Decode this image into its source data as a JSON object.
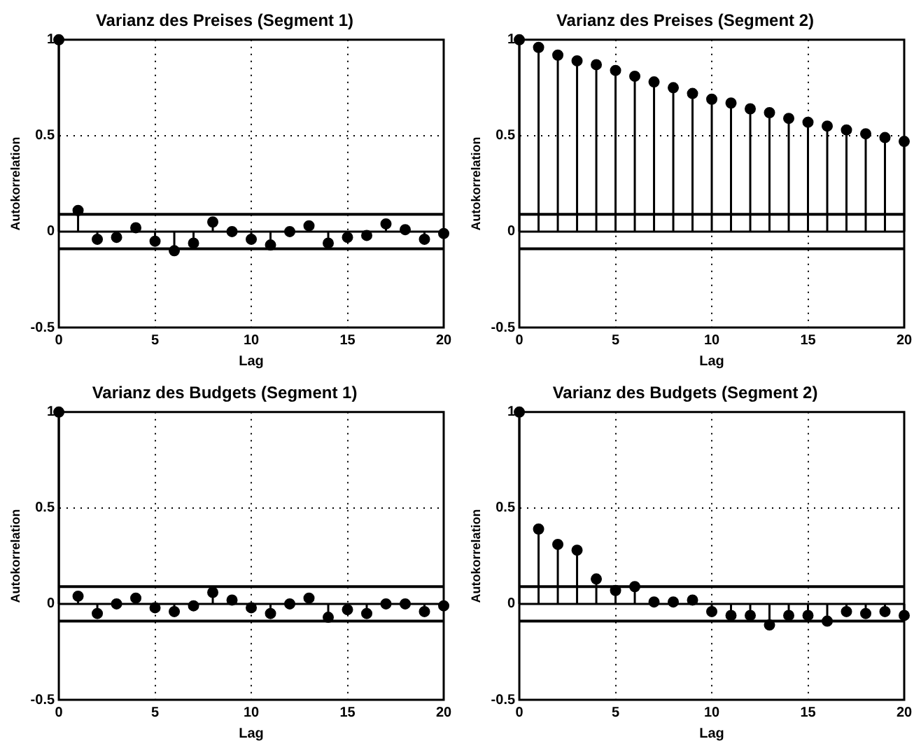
{
  "chart_data": [
    {
      "type": "lollipop",
      "title": "Varianz des Preises (Segment 1)",
      "xlabel": "Lag",
      "ylabel": "Autokorrelation",
      "x": [
        0,
        1,
        2,
        3,
        4,
        5,
        6,
        7,
        8,
        9,
        10,
        11,
        12,
        13,
        14,
        15,
        16,
        17,
        18,
        19,
        20
      ],
      "values": [
        1,
        0.11,
        -0.04,
        -0.03,
        0.02,
        -0.05,
        -0.1,
        -0.06,
        0.05,
        0.0,
        -0.04,
        -0.07,
        0.0,
        0.03,
        -0.06,
        -0.03,
        -0.02,
        0.04,
        0.01,
        -0.04,
        -0.01
      ],
      "color": "#000000",
      "marker": "circle",
      "xlim": [
        0,
        20
      ],
      "xticks": [
        0,
        5,
        10,
        15,
        20
      ],
      "ylim": [
        -0.5,
        1
      ],
      "yticks": [
        -0.5,
        0,
        0.5,
        1
      ],
      "grid": true,
      "ref_lines": [
        {
          "axis": "y",
          "value": 0.09
        },
        {
          "axis": "y",
          "value": -0.09
        }
      ]
    },
    {
      "type": "lollipop",
      "title": "Varianz des Preises (Segment 2)",
      "xlabel": "Lag",
      "ylabel": "Autokorrelation",
      "x": [
        0,
        1,
        2,
        3,
        4,
        5,
        6,
        7,
        8,
        9,
        10,
        11,
        12,
        13,
        14,
        15,
        16,
        17,
        18,
        19,
        20
      ],
      "values": [
        1,
        0.96,
        0.92,
        0.89,
        0.87,
        0.84,
        0.81,
        0.78,
        0.75,
        0.72,
        0.69,
        0.67,
        0.64,
        0.62,
        0.59,
        0.57,
        0.55,
        0.53,
        0.51,
        0.49,
        0.47
      ],
      "color": "#000000",
      "marker": "circle",
      "xlim": [
        0,
        20
      ],
      "xticks": [
        0,
        5,
        10,
        15,
        20
      ],
      "ylim": [
        -0.5,
        1
      ],
      "yticks": [
        -0.5,
        0,
        0.5,
        1
      ],
      "grid": true,
      "ref_lines": [
        {
          "axis": "y",
          "value": 0.09
        },
        {
          "axis": "y",
          "value": -0.09
        }
      ]
    },
    {
      "type": "lollipop",
      "title": "Varianz des Budgets (Segment 1)",
      "xlabel": "Lag",
      "ylabel": "Autokorrelation",
      "x": [
        0,
        1,
        2,
        3,
        4,
        5,
        6,
        7,
        8,
        9,
        10,
        11,
        12,
        13,
        14,
        15,
        16,
        17,
        18,
        19,
        20
      ],
      "values": [
        1,
        0.04,
        -0.05,
        0.0,
        0.03,
        -0.02,
        -0.04,
        -0.01,
        0.06,
        0.02,
        -0.02,
        -0.05,
        0.0,
        0.03,
        -0.07,
        -0.03,
        -0.05,
        0.0,
        0.0,
        -0.04,
        -0.01
      ],
      "color": "#000000",
      "marker": "circle",
      "xlim": [
        0,
        20
      ],
      "xticks": [
        0,
        5,
        10,
        15,
        20
      ],
      "ylim": [
        -0.5,
        1
      ],
      "yticks": [
        -0.5,
        0,
        0.5,
        1
      ],
      "grid": true,
      "ref_lines": [
        {
          "axis": "y",
          "value": 0.09
        },
        {
          "axis": "y",
          "value": -0.09
        }
      ]
    },
    {
      "type": "lollipop",
      "title": "Varianz des Budgets (Segment 2)",
      "xlabel": "Lag",
      "ylabel": "Autokorrelation",
      "x": [
        0,
        1,
        2,
        3,
        4,
        5,
        6,
        7,
        8,
        9,
        10,
        11,
        12,
        13,
        14,
        15,
        16,
        17,
        18,
        19,
        20
      ],
      "values": [
        1,
        0.39,
        0.31,
        0.28,
        0.13,
        0.07,
        0.09,
        0.01,
        0.01,
        0.02,
        -0.04,
        -0.06,
        -0.06,
        -0.11,
        -0.06,
        -0.06,
        -0.09,
        -0.04,
        -0.05,
        -0.04,
        -0.06
      ],
      "color": "#000000",
      "marker": "circle",
      "xlim": [
        0,
        20
      ],
      "xticks": [
        0,
        5,
        10,
        15,
        20
      ],
      "ylim": [
        -0.5,
        1
      ],
      "yticks": [
        -0.5,
        0,
        0.5,
        1
      ],
      "grid": true,
      "ref_lines": [
        {
          "axis": "y",
          "value": 0.09
        },
        {
          "axis": "y",
          "value": -0.09
        }
      ]
    }
  ]
}
